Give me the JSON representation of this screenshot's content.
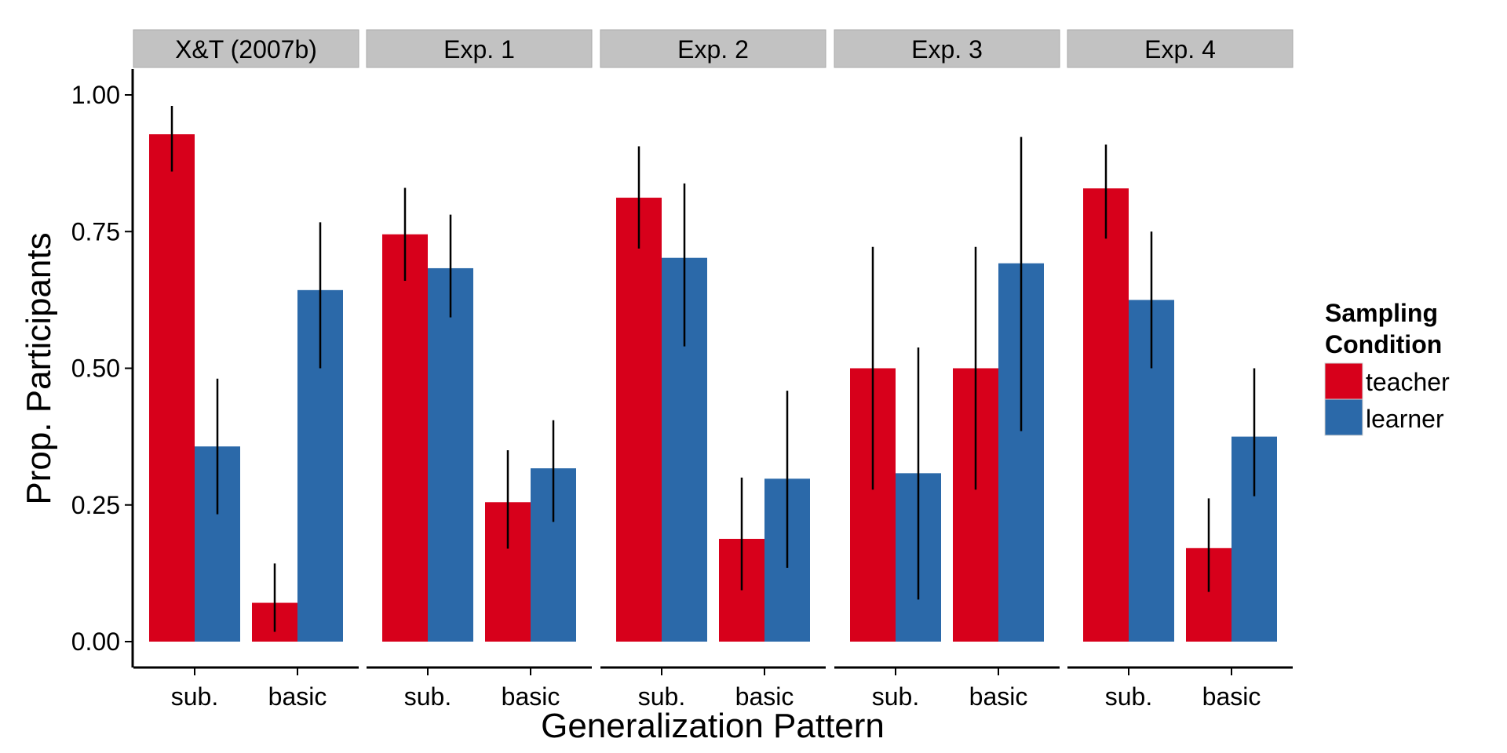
{
  "chart_data": {
    "type": "bar",
    "xlabel": "Generalization Pattern",
    "ylabel": "Prop. Participants",
    "ylim": [
      0,
      1.05
    ],
    "y_ticks": [
      "0.00",
      "0.25",
      "0.50",
      "0.75",
      "1.00"
    ],
    "y_tick_values": [
      0,
      0.25,
      0.5,
      0.75,
      1.0
    ],
    "categories": [
      "sub.",
      "basic"
    ],
    "grid": false,
    "legend": {
      "title_lines": [
        "Sampling",
        "Condition"
      ],
      "placement": "right",
      "entries": [
        {
          "label": "teacher",
          "color": "#D7001B"
        },
        {
          "label": "learner",
          "color": "#2B69A9"
        }
      ]
    },
    "panels": [
      {
        "title": "X&T (2007b)",
        "series": [
          {
            "name": "teacher",
            "values": [
              0.928,
              0.071
            ],
            "err_low": [
              0.86,
              0.018
            ],
            "err_high": [
              0.98,
              0.143
            ]
          },
          {
            "name": "learner",
            "values": [
              0.357,
              0.643
            ],
            "err_low": [
              0.233,
              0.5
            ],
            "err_high": [
              0.481,
              0.767
            ]
          }
        ]
      },
      {
        "title": "Exp. 1",
        "series": [
          {
            "name": "teacher",
            "values": [
              0.745,
              0.255
            ],
            "err_low": [
              0.66,
              0.17
            ],
            "err_high": [
              0.83,
              0.35
            ]
          },
          {
            "name": "learner",
            "values": [
              0.683,
              0.317
            ],
            "err_low": [
              0.593,
              0.219
            ],
            "err_high": [
              0.781,
              0.405
            ]
          }
        ]
      },
      {
        "title": "Exp. 2",
        "series": [
          {
            "name": "teacher",
            "values": [
              0.812,
              0.188
            ],
            "err_low": [
              0.719,
              0.094
            ],
            "err_high": [
              0.906,
              0.3
            ]
          },
          {
            "name": "learner",
            "values": [
              0.702,
              0.298
            ],
            "err_low": [
              0.54,
              0.135
            ],
            "err_high": [
              0.838,
              0.459
            ]
          }
        ]
      },
      {
        "title": "Exp. 3",
        "series": [
          {
            "name": "teacher",
            "values": [
              0.5,
              0.5
            ],
            "err_low": [
              0.278,
              0.278
            ],
            "err_high": [
              0.722,
              0.722
            ]
          },
          {
            "name": "learner",
            "values": [
              0.308,
              0.692
            ],
            "err_low": [
              0.077,
              0.385
            ],
            "err_high": [
              0.538,
              0.923
            ]
          }
        ]
      },
      {
        "title": "Exp. 4",
        "series": [
          {
            "name": "teacher",
            "values": [
              0.829,
              0.171
            ],
            "err_low": [
              0.737,
              0.091
            ],
            "err_high": [
              0.909,
              0.262
            ]
          },
          {
            "name": "learner",
            "values": [
              0.625,
              0.375
            ],
            "err_low": [
              0.5,
              0.266
            ],
            "err_high": [
              0.75,
              0.5
            ]
          }
        ]
      }
    ]
  },
  "colors": {
    "teacher": "#D7001B",
    "learner": "#2B69A9",
    "strip_background": "#C2C2C2",
    "axis": "#000000",
    "error_bar": "#000000"
  }
}
